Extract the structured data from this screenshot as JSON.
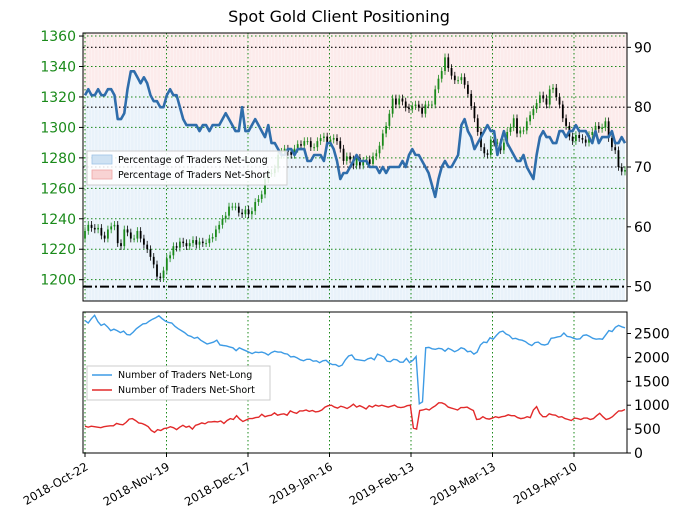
{
  "chart_data": {
    "type": "line",
    "title": "Spot Gold Client Positioning",
    "x_tick_labels": [
      "2018-Oct-22",
      "2018-Nov-19",
      "2018-Dec-17",
      "2019-Jan-16",
      "2019-Feb-13",
      "2019-Mar-13",
      "2019-Apr-10"
    ],
    "top_panel": {
      "price_axis": {
        "side": "left",
        "ticks": [
          1200,
          1220,
          1240,
          1260,
          1280,
          1300,
          1320,
          1340,
          1360
        ],
        "ylim": [
          1186,
          1362
        ]
      },
      "pct_axis": {
        "side": "right",
        "ticks": [
          50,
          60,
          70,
          80,
          90
        ],
        "ylim": [
          47.6,
          92.4
        ]
      },
      "legend": {
        "position": "center-left",
        "entries": [
          "Percentage of Traders Net-Long",
          "Percentage of Traders Net-Short"
        ]
      },
      "colors": {
        "net_long_fill": "#cfe2f3",
        "net_short_fill": "#f8d3d3",
        "sentiment_line": "#2f6dab",
        "candle_up": "#1a8a1a",
        "candle_down": "#000000"
      },
      "horizontal_reference_levels_pct": [
        50,
        70,
        80,
        90
      ],
      "net_long_pct_series": [
        82,
        83,
        82,
        82,
        83,
        82,
        82,
        83,
        83,
        82,
        78,
        78,
        79,
        83,
        86,
        86,
        85,
        84,
        85,
        84,
        82,
        81,
        81,
        80,
        80,
        82,
        83,
        82,
        82,
        80,
        78,
        77,
        77,
        77,
        77,
        76,
        77,
        77,
        76,
        77,
        77,
        77,
        78,
        79,
        78,
        77,
        76,
        76,
        80,
        76,
        76,
        77,
        78,
        77,
        76,
        75,
        77,
        74,
        74,
        73,
        72,
        72,
        73,
        73,
        72,
        73,
        73,
        73,
        71,
        71,
        72,
        72,
        72,
        71,
        74,
        74,
        73,
        71,
        68,
        69,
        69,
        70,
        71,
        72,
        71,
        71,
        71,
        70,
        70,
        70,
        69,
        70,
        69,
        70,
        70,
        70,
        70,
        71,
        70,
        72,
        73,
        72,
        72,
        71,
        70,
        69,
        67,
        65,
        68,
        70,
        71,
        70,
        70,
        71,
        72,
        77,
        78,
        76,
        75,
        73,
        74,
        75,
        76,
        77,
        76,
        76,
        72,
        74,
        76,
        74,
        73,
        72,
        71,
        71,
        72,
        70,
        69,
        68,
        72,
        75,
        76,
        75,
        75,
        74,
        74,
        76,
        76,
        75,
        76,
        76,
        77,
        76,
        76,
        76,
        75,
        74,
        76,
        74,
        75,
        75,
        75,
        76,
        74,
        74,
        75,
        74
      ],
      "price_series_close": [
        1232,
        1236,
        1234,
        1233,
        1234,
        1229,
        1227,
        1233,
        1235,
        1236,
        1224,
        1222,
        1233,
        1231,
        1227,
        1227,
        1232,
        1227,
        1223,
        1220,
        1215,
        1210,
        1202,
        1201,
        1206,
        1214,
        1216,
        1222,
        1221,
        1225,
        1224,
        1222,
        1224,
        1226,
        1223,
        1225,
        1224,
        1224,
        1227,
        1228,
        1233,
        1236,
        1240,
        1242,
        1248,
        1248,
        1248,
        1244,
        1243,
        1246,
        1243,
        1245,
        1251,
        1253,
        1256,
        1266,
        1270,
        1270,
        1273,
        1282,
        1284,
        1286,
        1284,
        1282,
        1286,
        1289,
        1288,
        1291,
        1291,
        1287,
        1287,
        1291,
        1293,
        1294,
        1290,
        1292,
        1293,
        1291,
        1286,
        1278,
        1281,
        1279,
        1275,
        1280,
        1275,
        1278,
        1279,
        1276,
        1281,
        1283,
        1288,
        1296,
        1301,
        1309,
        1319,
        1315,
        1319,
        1317,
        1313,
        1312,
        1314,
        1315,
        1313,
        1309,
        1315,
        1315,
        1315,
        1325,
        1332,
        1337,
        1346,
        1339,
        1334,
        1331,
        1331,
        1333,
        1328,
        1322,
        1314,
        1306,
        1297,
        1287,
        1283,
        1282,
        1292,
        1290,
        1290,
        1285,
        1290,
        1297,
        1300,
        1306,
        1296,
        1298,
        1298,
        1304,
        1308,
        1312,
        1316,
        1321,
        1319,
        1315,
        1325,
        1326,
        1320,
        1315,
        1306,
        1301,
        1294,
        1291,
        1295,
        1293,
        1292,
        1290,
        1295,
        1297,
        1301,
        1299,
        1300,
        1304,
        1293,
        1287,
        1285,
        1274,
        1271,
        1272
      ],
      "price_series_open": [
        1227,
        1232,
        1236,
        1234,
        1233,
        1234,
        1229,
        1227,
        1233,
        1235,
        1236,
        1224,
        1222,
        1233,
        1231,
        1227,
        1227,
        1232,
        1227,
        1223,
        1220,
        1215,
        1210,
        1202,
        1201,
        1206,
        1214,
        1216,
        1222,
        1221,
        1225,
        1224,
        1222,
        1224,
        1226,
        1223,
        1225,
        1224,
        1224,
        1227,
        1228,
        1233,
        1236,
        1240,
        1242,
        1248,
        1248,
        1248,
        1244,
        1243,
        1246,
        1243,
        1245,
        1251,
        1253,
        1256,
        1266,
        1270,
        1270,
        1273,
        1282,
        1284,
        1286,
        1284,
        1282,
        1286,
        1289,
        1288,
        1291,
        1291,
        1287,
        1287,
        1291,
        1293,
        1294,
        1290,
        1292,
        1293,
        1291,
        1286,
        1278,
        1281,
        1279,
        1275,
        1280,
        1275,
        1278,
        1279,
        1276,
        1281,
        1283,
        1288,
        1296,
        1301,
        1309,
        1319,
        1315,
        1319,
        1317,
        1313,
        1312,
        1314,
        1315,
        1313,
        1309,
        1315,
        1315,
        1315,
        1325,
        1332,
        1337,
        1346,
        1339,
        1334,
        1331,
        1331,
        1333,
        1328,
        1322,
        1314,
        1306,
        1297,
        1287,
        1283,
        1282,
        1292,
        1290,
        1290,
        1285,
        1290,
        1297,
        1300,
        1306,
        1296,
        1298,
        1298,
        1304,
        1308,
        1312,
        1316,
        1321,
        1319,
        1315,
        1325,
        1326,
        1320,
        1315,
        1306,
        1301,
        1294,
        1291,
        1295,
        1293,
        1292,
        1290,
        1295,
        1297,
        1301,
        1299,
        1300,
        1304,
        1293,
        1287,
        1285,
        1274,
        1271
      ]
    },
    "bottom_panel": {
      "right_axis": {
        "ticks": [
          0,
          500,
          1000,
          1500,
          2000,
          2500
        ],
        "ylim": [
          0,
          2950
        ]
      },
      "legend": {
        "position": "center-left",
        "entries": [
          "Number of Traders Net-Long",
          "Number of Traders Net-Short"
        ]
      },
      "colors": {
        "net_long": "#3d9be5",
        "net_short": "#e22a2a"
      },
      "net_long_series": [
        2770,
        2720,
        2810,
        2880,
        2750,
        2670,
        2700,
        2640,
        2560,
        2590,
        2560,
        2520,
        2550,
        2480,
        2470,
        2530,
        2600,
        2650,
        2700,
        2710,
        2760,
        2800,
        2830,
        2870,
        2810,
        2760,
        2730,
        2720,
        2650,
        2600,
        2560,
        2520,
        2460,
        2440,
        2400,
        2420,
        2360,
        2320,
        2280,
        2300,
        2320,
        2360,
        2260,
        2250,
        2240,
        2220,
        2200,
        2140,
        2200,
        2170,
        2140,
        2110,
        2080,
        2110,
        2100,
        2110,
        2090,
        2050,
        2100,
        2130,
        2110,
        2110,
        2080,
        2070,
        2010,
        2020,
        1990,
        1950,
        1930,
        1960,
        1960,
        1920,
        1930,
        1890,
        1930,
        1940,
        1880,
        1850,
        1850,
        1810,
        1840,
        1950,
        2030,
        2050,
        1960,
        1950,
        1940,
        1930,
        1970,
        1990,
        1950,
        2070,
        2040,
        2010,
        1920,
        1910,
        1960,
        1950,
        1900,
        1900,
        1980,
        1890,
        1940,
        2020,
        1030,
        1070,
        2200,
        2210,
        2180,
        2170,
        2190,
        2180,
        2130,
        2190,
        2160,
        2120,
        2150,
        2200,
        2180,
        2120,
        2130,
        2070,
        2110,
        2260,
        2320,
        2310,
        2410,
        2380,
        2460,
        2530,
        2550,
        2490,
        2460,
        2390,
        2400,
        2370,
        2360,
        2330,
        2280,
        2250,
        2310,
        2320,
        2270,
        2260,
        2280,
        2400,
        2410,
        2430,
        2440,
        2510,
        2440,
        2430,
        2400,
        2380,
        2390,
        2460,
        2470,
        2440,
        2400,
        2380,
        2390,
        2380,
        2470,
        2560,
        2540,
        2630,
        2670,
        2640,
        2620
      ],
      "net_short_series": [
        560,
        540,
        560,
        550,
        540,
        530,
        550,
        560,
        570,
        570,
        620,
        600,
        590,
        640,
        710,
        720,
        680,
        630,
        620,
        590,
        550,
        470,
        430,
        490,
        470,
        510,
        520,
        550,
        530,
        490,
        540,
        580,
        540,
        560,
        500,
        580,
        600,
        630,
        610,
        650,
        650,
        660,
        650,
        670,
        620,
        680,
        720,
        700,
        780,
        710,
        660,
        690,
        720,
        720,
        740,
        750,
        810,
        760,
        780,
        790,
        840,
        790,
        810,
        820,
        790,
        880,
        850,
        830,
        880,
        880,
        900,
        870,
        890,
        860,
        870,
        900,
        960,
        990,
        1000,
        960,
        940,
        980,
        960,
        930,
        970,
        1020,
        960,
        990,
        960,
        920,
        990,
        960,
        1000,
        980,
        1000,
        980,
        960,
        980,
        1000,
        960,
        950,
        960,
        990,
        1000,
        520,
        500,
        890,
        900,
        920,
        900,
        950,
        990,
        1050,
        1050,
        1020,
        960,
        940,
        920,
        900,
        950,
        950,
        960,
        920,
        890,
        700,
        710,
        760,
        720,
        710,
        730,
        760,
        740,
        760,
        770,
        800,
        780,
        780,
        740,
        720,
        730,
        760,
        740,
        900,
        970,
        830,
        760,
        760,
        820,
        800,
        790,
        750,
        760,
        720,
        700,
        680,
        730,
        720,
        700,
        730,
        730,
        700,
        720,
        780,
        830,
        760,
        700,
        720,
        760,
        820,
        880,
        880,
        910
      ]
    }
  }
}
